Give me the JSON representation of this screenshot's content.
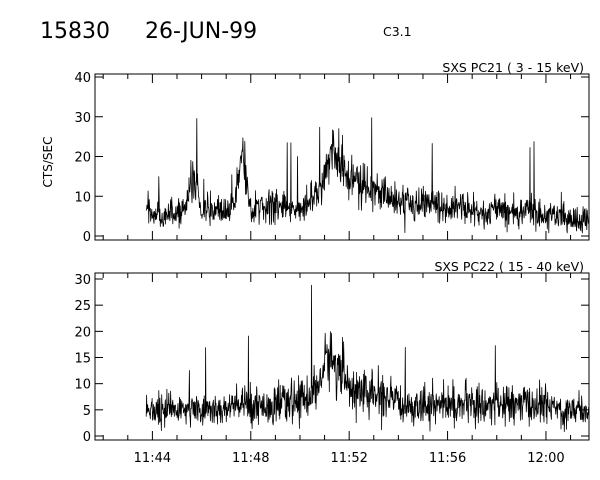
{
  "header": {
    "event_id": "15830",
    "date": "26-JUN-99",
    "flare_class": "C3.1"
  },
  "chart_data": [
    {
      "type": "line",
      "title": "SXS PC21  (  3 - 15 keV)",
      "ylabel": "CTS/SEC",
      "xlabel": "",
      "ylim": [
        0,
        40
      ],
      "yticks": [
        "0",
        "10",
        "20",
        "30",
        "40"
      ],
      "xlim": [
        "11:41:40",
        "12:01:45"
      ],
      "xticks": [
        "11:44",
        "11:48",
        "11:52",
        "11:56",
        "12:00"
      ],
      "data_start": "11:43:45",
      "series": [
        {
          "x": [
            "11:43:45",
            "11:44:00",
            "11:44:30",
            "11:45:00",
            "11:45:20",
            "11:45:40",
            "11:46:00",
            "11:46:30",
            "11:47:00",
            "11:47:20",
            "11:47:40",
            "11:48:00",
            "11:48:30",
            "11:49:00",
            "11:49:30",
            "11:50:00",
            "11:50:30",
            "11:50:45",
            "11:51:00",
            "11:51:10",
            "11:51:20",
            "11:51:35",
            "11:51:50",
            "11:52:00",
            "11:52:15",
            "11:52:30",
            "11:53:00",
            "11:53:30",
            "11:54:00",
            "11:54:30",
            "11:55:00",
            "11:55:30",
            "11:56:00",
            "11:56:30",
            "11:57:00",
            "11:57:30",
            "11:58:00",
            "11:58:30",
            "11:59:00",
            "11:59:30",
            "12:00:00",
            "12:00:30",
            "12:01:00",
            "12:01:40"
          ],
          "values": [
            7,
            6,
            5,
            6,
            7,
            15,
            6,
            7,
            6,
            8,
            22,
            7,
            7,
            8,
            7,
            7,
            9,
            12,
            16,
            18,
            20,
            19,
            16,
            15,
            15,
            13,
            12,
            10,
            9,
            8,
            8,
            8,
            7,
            7,
            7,
            6,
            7,
            6,
            6,
            6,
            5,
            5,
            4,
            4
          ]
        }
      ]
    },
    {
      "type": "line",
      "title": "SXS PC22  ( 15 - 40 keV)",
      "ylabel": "",
      "xlabel": "",
      "ylim": [
        0,
        30
      ],
      "yticks": [
        "0",
        "5",
        "10",
        "15",
        "20",
        "25",
        "30"
      ],
      "xlim": [
        "11:41:40",
        "12:01:45"
      ],
      "xticks": [
        "11:44",
        "11:48",
        "11:52",
        "11:56",
        "12:00"
      ],
      "data_start": "11:43:45",
      "series": [
        {
          "x": [
            "11:43:45",
            "11:44:00",
            "11:44:30",
            "11:45:00",
            "11:45:30",
            "11:46:00",
            "11:46:30",
            "11:47:00",
            "11:47:30",
            "11:48:00",
            "11:48:30",
            "11:49:00",
            "11:49:30",
            "11:50:00",
            "11:50:30",
            "11:50:45",
            "11:51:00",
            "11:51:10",
            "11:51:20",
            "11:51:35",
            "11:51:50",
            "11:52:00",
            "11:52:15",
            "11:52:30",
            "11:53:00",
            "11:53:30",
            "11:54:00",
            "11:54:30",
            "11:55:00",
            "11:55:30",
            "11:56:00",
            "11:56:30",
            "11:57:00",
            "11:57:30",
            "11:58:00",
            "11:58:30",
            "11:59:00",
            "11:59:30",
            "12:00:00",
            "12:00:30",
            "12:01:00",
            "12:01:40"
          ],
          "values": [
            5,
            5,
            5,
            5,
            5,
            5,
            5,
            5,
            6,
            6,
            6,
            6,
            6,
            7,
            8,
            10,
            13,
            16,
            14,
            13,
            11,
            10,
            9,
            8,
            8,
            7,
            6,
            6,
            6,
            6,
            6,
            6,
            6,
            6,
            6,
            6,
            6,
            6,
            6,
            5,
            5,
            5
          ]
        }
      ]
    }
  ]
}
